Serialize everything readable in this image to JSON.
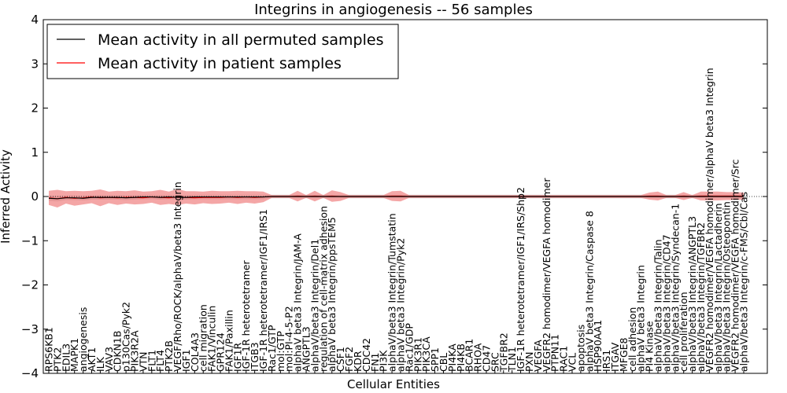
{
  "chart_data": {
    "type": "line",
    "title": "Integrins in angiogenesis -- 56 samples",
    "xlabel": "Cellular Entities",
    "ylabel": "Inferred Activity",
    "ylim": [
      -4,
      4
    ],
    "yticks": [
      -4,
      -3,
      -2,
      -1,
      0,
      1,
      2,
      3,
      4
    ],
    "ytick_labels": [
      "−4",
      "−3",
      "−2",
      "−1",
      "0",
      "1",
      "2",
      "3",
      "4"
    ],
    "legend_position": "top-left",
    "categories": [
      "RPS6KB1",
      "PTK2",
      "EDIL3",
      "MAPK1",
      "angiogenesis",
      "AKT1",
      "ILK",
      "VAV3",
      "CDKN1B",
      "p130Cas/Pyk2",
      "PIK3R2A",
      "VTN",
      "FLT1",
      "FLT4",
      "PTK2B",
      "VEGF/Rho/ROCK/alphaV/beta3 Integrin",
      "IGF1",
      "COL4A3",
      "cell migration",
      "FAK1/Vinculin",
      "GPR124",
      "FAK1/Paxillin",
      "IGF1R",
      "IGF-1R heterotetramer",
      "ITGB3",
      "IGF-1R heterotetramer/IGF1/IRS1",
      "Rac1/GTP",
      "mol:GTP",
      "mol:PI-4-5-P2",
      "alphaV beta3 Integrin/JAM-A",
      "ANGPTL3",
      "alphaV/beta3 Integrin/Del1",
      "regulation of cell-matrix adhesion",
      "alphaV beta3 Integrin/ppsTEM5",
      "CSF1",
      "FGF2",
      "KDR",
      "CDC42",
      "FN1",
      "PI3K",
      "alphaV/beta3 Integrin/Tumstatin",
      "alphaV beta3 Integrin/Pyk2",
      "Rac1/GDP",
      "PIK3R1",
      "PIK3CA",
      "SPP1",
      "CBL",
      "PI4KA",
      "PI4KB",
      "BCAR1",
      "RHOA",
      "CD47",
      "SRC",
      "TGFBR2",
      "TLN1",
      "IGF-1R heterotetramer/IGF1/IRS/Shp2",
      "PXN",
      "VEGFA",
      "VEGFR2 homodimer/VEGFA homodimer",
      "PTPN11",
      "RAC1",
      "VCL",
      "apoptosis",
      "alphaV beta3 Integrin/Caspase 8",
      "HSP90AA1",
      "IRS1",
      "ITGAV",
      "MFGE8",
      "cell adhesion",
      "alphaV beta3 Integrin",
      "PI4 Kinase",
      "alphaV/beta3 Integrin/Talin",
      "alphaV/beta3 Integrin/CD47",
      "alphaV/beta3 Integrin/Syndecan-1",
      "cell proliferation",
      "alphaV/beta3 Integrin/ANGPTL3",
      "alphaV/beta3 Integrin/TGFBR2",
      "VEGFR2 homodimer/VEGFA homodimer/alphaV beta3 Integrin",
      "alphaV/beta3 Integrin/Lactadherin",
      "alphaV/beta3 Integrin/Osteopontin",
      "VEGFR2 homodimer/VEGFA homodimer/Src",
      "alphaV/beta3 Integrin/c-FMS/Cbl/Cas"
    ],
    "series": [
      {
        "name": "Mean activity in all permuted samples",
        "color": "#000000",
        "values": [
          -0.04,
          -0.05,
          -0.03,
          -0.03,
          -0.04,
          -0.02,
          -0.02,
          -0.02,
          -0.02,
          -0.03,
          -0.02,
          -0.01,
          -0.01,
          -0.02,
          -0.01,
          -0.02,
          -0.02,
          -0.01,
          -0.01,
          -0.01,
          -0.01,
          -0.01,
          -0.01,
          -0.01,
          -0.01,
          -0.01,
          0,
          0,
          0,
          0,
          0,
          0,
          0,
          0,
          0,
          0,
          0,
          0,
          0,
          0,
          0,
          0,
          0,
          0,
          0,
          0,
          0,
          0,
          0,
          0,
          0,
          0,
          0,
          0,
          0,
          0,
          0,
          0,
          0,
          0,
          0,
          0,
          0,
          0,
          0,
          0,
          0,
          0,
          0,
          0,
          0,
          0,
          0,
          0,
          0,
          0,
          0,
          0,
          0,
          0,
          0,
          0
        ],
        "band": [
          0.06,
          0.06,
          0.05,
          0.05,
          0.05,
          0.05,
          0.05,
          0.05,
          0.05,
          0.05,
          0.05,
          0.05,
          0.05,
          0.05,
          0.05,
          0.05,
          0.05,
          0.05,
          0.05,
          0.05,
          0.05,
          0.05,
          0.05,
          0.05,
          0.05,
          0.05,
          0.04,
          0.04,
          0.04,
          0.04,
          0.04,
          0.04,
          0.04,
          0.04,
          0.04,
          0.04,
          0.04,
          0.04,
          0.04,
          0.04,
          0.04,
          0.04,
          0.04,
          0.04,
          0.04,
          0.04,
          0.04,
          0.04,
          0.04,
          0.04,
          0.04,
          0.04,
          0.04,
          0.04,
          0.04,
          0.04,
          0.04,
          0.04,
          0.04,
          0.04,
          0.04,
          0.04,
          0.04,
          0.04,
          0.04,
          0.04,
          0.04,
          0.04,
          0.04,
          0.04,
          0.04,
          0.04,
          0.04,
          0.04,
          0.04,
          0.04,
          0.04,
          0.04,
          0.04,
          0.04,
          0.04,
          0.04
        ]
      },
      {
        "name": "Mean activity in patient samples",
        "color": "#ff0000",
        "values": [
          -0.03,
          -0.05,
          -0.02,
          -0.04,
          -0.03,
          -0.01,
          -0.03,
          -0.02,
          -0.03,
          -0.02,
          -0.02,
          -0.03,
          -0.01,
          -0.02,
          -0.03,
          -0.01,
          -0.02,
          -0.03,
          -0.02,
          -0.02,
          -0.02,
          -0.01,
          -0.02,
          -0.01,
          -0.02,
          -0.01,
          0,
          0,
          0,
          0.01,
          0,
          0.01,
          0,
          0.01,
          0,
          0,
          0,
          0,
          0,
          0,
          0.01,
          0.01,
          0,
          0,
          0,
          0,
          0,
          0,
          0,
          0,
          0,
          0,
          0,
          0,
          0,
          0,
          0,
          0,
          0,
          0,
          0,
          0,
          0,
          0,
          0,
          0,
          0,
          0,
          0,
          0,
          0.01,
          0.01,
          0,
          0,
          0.01,
          0,
          0.01,
          0.01,
          0.01,
          0.01,
          0.01,
          0.01
        ],
        "band": [
          0.16,
          0.2,
          0.14,
          0.17,
          0.15,
          0.14,
          0.19,
          0.13,
          0.16,
          0.14,
          0.16,
          0.14,
          0.13,
          0.17,
          0.14,
          0.18,
          0.14,
          0.15,
          0.13,
          0.15,
          0.14,
          0.13,
          0.15,
          0.13,
          0.14,
          0.12,
          0.03,
          0.03,
          0.03,
          0.12,
          0.03,
          0.12,
          0.03,
          0.13,
          0.1,
          0.03,
          0.03,
          0.03,
          0.03,
          0.03,
          0.11,
          0.12,
          0.03,
          0.03,
          0.03,
          0.03,
          0.03,
          0.03,
          0.03,
          0.03,
          0.03,
          0.03,
          0.03,
          0.03,
          0.03,
          0.03,
          0.03,
          0.03,
          0.03,
          0.03,
          0.03,
          0.03,
          0.03,
          0.03,
          0.03,
          0.03,
          0.03,
          0.03,
          0.03,
          0.03,
          0.08,
          0.1,
          0.03,
          0.03,
          0.09,
          0.03,
          0.1,
          0.1,
          0.1,
          0.09,
          0.09,
          0.08
        ]
      }
    ]
  }
}
